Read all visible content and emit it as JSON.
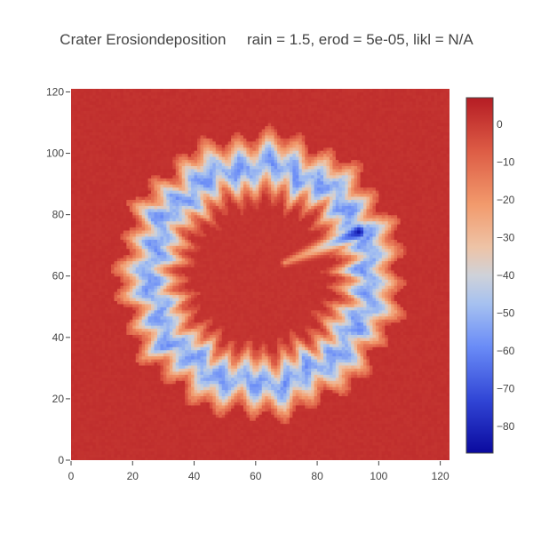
{
  "chart_data": {
    "type": "heatmap",
    "title": "Crater Erosiondeposition     rain = 1.5, erod = 5e-05, likl = N/A",
    "xlabel": "",
    "ylabel": "",
    "xlim": [
      0,
      123
    ],
    "ylim": [
      0,
      121
    ],
    "x_ticks": [
      0,
      20,
      40,
      60,
      80,
      100,
      120
    ],
    "y_ticks": [
      0,
      20,
      40,
      60,
      80,
      100,
      120
    ],
    "grid": false,
    "grid_size": [
      123,
      121
    ],
    "crater_center": [
      61,
      60
    ],
    "zlim": [
      -87,
      7
    ],
    "colorbar": {
      "ticks": [
        0,
        -10,
        -20,
        -30,
        -40,
        -50,
        -60,
        -70,
        -80
      ],
      "tick_labels": [
        "0",
        "−10",
        "−20",
        "−30",
        "−40",
        "−50",
        "−60",
        "−70",
        "−80"
      ],
      "placement": "right"
    },
    "colorscale": [
      [
        0.0,
        "#0a0a9e"
      ],
      [
        0.15,
        "#3146d6"
      ],
      [
        0.3,
        "#6a8cf7"
      ],
      [
        0.42,
        "#a6c1f0"
      ],
      [
        0.5,
        "#cfd2d9"
      ],
      [
        0.58,
        "#eec3a6"
      ],
      [
        0.7,
        "#f29a6c"
      ],
      [
        0.85,
        "#dd5c45"
      ],
      [
        1.0,
        "#b51c24"
      ]
    ],
    "features": {
      "rim_deposition": 3,
      "outer_apron_radius": 46,
      "inner_basin_radius": 23,
      "ring_min": -52,
      "channel_min": -87,
      "channel_start": [
        69,
        64
      ],
      "channel_end": [
        93,
        74
      ]
    }
  }
}
